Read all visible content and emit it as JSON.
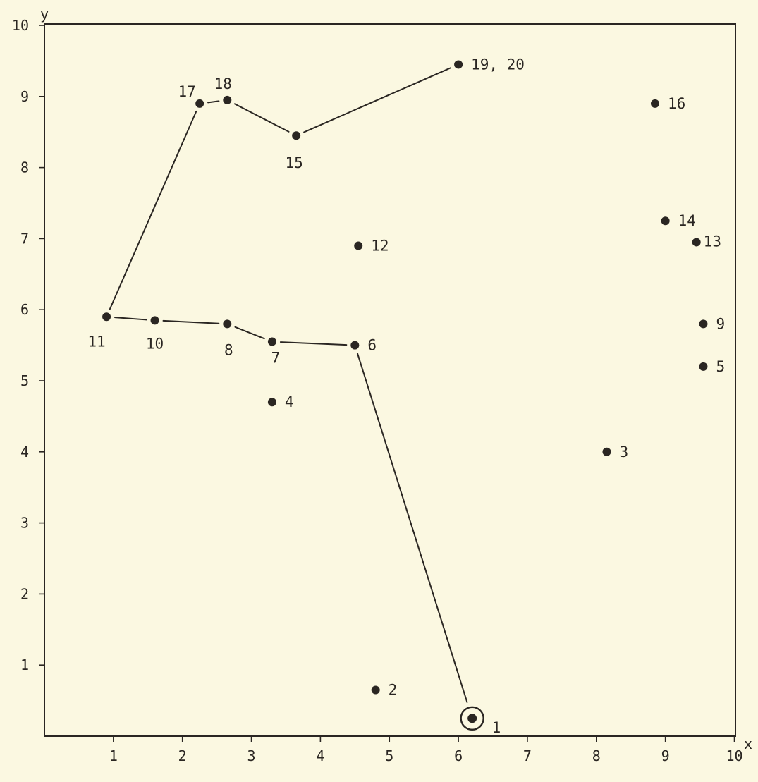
{
  "chart_data": {
    "type": "scatter",
    "title": "",
    "xlabel": "x",
    "ylabel": "y",
    "xlim": [
      0,
      10
    ],
    "ylim": [
      0,
      10
    ],
    "x_ticks": [
      "1",
      "2",
      "3",
      "4",
      "5",
      "6",
      "7",
      "8",
      "9",
      "10"
    ],
    "y_ticks": [
      "1",
      "2",
      "3",
      "4",
      "5",
      "6",
      "7",
      "8",
      "9",
      "10"
    ],
    "grid": false,
    "legend": "none",
    "colors": {
      "background": "#fbf8e1",
      "ink": "#2a2622"
    },
    "points": [
      {
        "label": "1",
        "x": 6.2,
        "y": 0.25,
        "highlight": true
      },
      {
        "label": "2",
        "x": 4.8,
        "y": 0.65
      },
      {
        "label": "3",
        "x": 8.15,
        "y": 4.0
      },
      {
        "label": "4",
        "x": 3.3,
        "y": 4.7
      },
      {
        "label": "5",
        "x": 9.55,
        "y": 5.2
      },
      {
        "label": "6",
        "x": 4.5,
        "y": 5.5
      },
      {
        "label": "7",
        "x": 3.3,
        "y": 5.55
      },
      {
        "label": "8",
        "x": 2.65,
        "y": 5.8
      },
      {
        "label": "9",
        "x": 9.55,
        "y": 5.8
      },
      {
        "label": "10",
        "x": 1.6,
        "y": 5.85
      },
      {
        "label": "11",
        "x": 0.9,
        "y": 5.9
      },
      {
        "label": "12",
        "x": 4.55,
        "y": 6.9
      },
      {
        "label": "13",
        "x": 9.45,
        "y": 6.95
      },
      {
        "label": "14",
        "x": 9.0,
        "y": 7.25
      },
      {
        "label": "15",
        "x": 3.65,
        "y": 8.45
      },
      {
        "label": "16",
        "x": 8.85,
        "y": 8.9
      },
      {
        "label": "17",
        "x": 2.25,
        "y": 8.9
      },
      {
        "label": "18",
        "x": 2.65,
        "y": 8.95
      },
      {
        "label": "19, 20",
        "x": 6.0,
        "y": 9.45
      }
    ],
    "route": [
      "1",
      "6",
      "7",
      "8",
      "10",
      "11",
      "17",
      "18",
      "15",
      "19, 20"
    ]
  }
}
